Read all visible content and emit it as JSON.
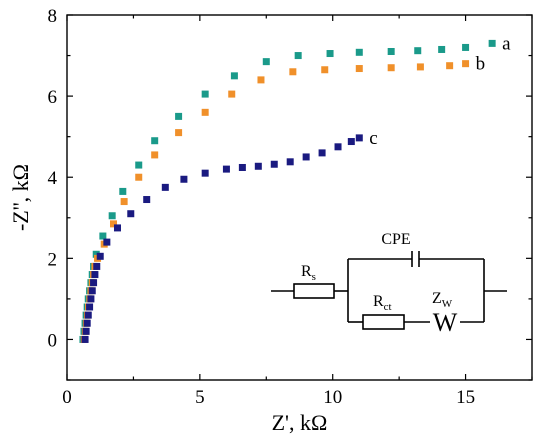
{
  "chart_data": {
    "type": "scatter",
    "xlabel": "Z', kΩ",
    "ylabel": "-Z'', kΩ",
    "xlim": [
      0,
      17.5
    ],
    "ylim": [
      -1,
      8
    ],
    "x_ticks": [
      0,
      5,
      10,
      15
    ],
    "y_ticks": [
      0,
      2,
      4,
      6,
      8
    ],
    "grid": false,
    "series": [
      {
        "name": "a",
        "color": "#1a9a8a",
        "points": [
          [
            0.6,
            0.0
          ],
          [
            0.64,
            0.2
          ],
          [
            0.68,
            0.4
          ],
          [
            0.72,
            0.6
          ],
          [
            0.76,
            0.8
          ],
          [
            0.8,
            1.0
          ],
          [
            0.85,
            1.2
          ],
          [
            0.9,
            1.4
          ],
          [
            0.95,
            1.6
          ],
          [
            1.0,
            1.8
          ],
          [
            1.1,
            2.1
          ],
          [
            1.35,
            2.55
          ],
          [
            1.7,
            3.05
          ],
          [
            2.1,
            3.65
          ],
          [
            2.7,
            4.3
          ],
          [
            3.3,
            4.9
          ],
          [
            4.2,
            5.5
          ],
          [
            5.2,
            6.05
          ],
          [
            6.3,
            6.5
          ],
          [
            7.5,
            6.85
          ],
          [
            8.7,
            7.0
          ],
          [
            9.9,
            7.05
          ],
          [
            11.0,
            7.08
          ],
          [
            12.2,
            7.1
          ],
          [
            13.2,
            7.12
          ],
          [
            14.1,
            7.15
          ],
          [
            15.0,
            7.2
          ],
          [
            16.0,
            7.3
          ]
        ]
      },
      {
        "name": "b",
        "color": "#f0902a",
        "points": [
          [
            0.65,
            0.0
          ],
          [
            0.69,
            0.2
          ],
          [
            0.73,
            0.4
          ],
          [
            0.77,
            0.6
          ],
          [
            0.81,
            0.8
          ],
          [
            0.86,
            1.0
          ],
          [
            0.9,
            1.2
          ],
          [
            0.95,
            1.4
          ],
          [
            1.0,
            1.6
          ],
          [
            1.05,
            1.8
          ],
          [
            1.15,
            2.0
          ],
          [
            1.4,
            2.35
          ],
          [
            1.75,
            2.85
          ],
          [
            2.15,
            3.4
          ],
          [
            2.7,
            4.0
          ],
          [
            3.3,
            4.55
          ],
          [
            4.2,
            5.1
          ],
          [
            5.2,
            5.6
          ],
          [
            6.2,
            6.05
          ],
          [
            7.3,
            6.4
          ],
          [
            8.5,
            6.6
          ],
          [
            9.7,
            6.65
          ],
          [
            11.0,
            6.68
          ],
          [
            12.2,
            6.7
          ],
          [
            13.3,
            6.72
          ],
          [
            14.4,
            6.75
          ],
          [
            15.0,
            6.8
          ]
        ]
      },
      {
        "name": "c",
        "color": "#1a1a80",
        "points": [
          [
            0.68,
            0.0
          ],
          [
            0.72,
            0.2
          ],
          [
            0.76,
            0.4
          ],
          [
            0.8,
            0.6
          ],
          [
            0.85,
            0.8
          ],
          [
            0.9,
            1.0
          ],
          [
            0.95,
            1.2
          ],
          [
            1.0,
            1.4
          ],
          [
            1.05,
            1.6
          ],
          [
            1.12,
            1.8
          ],
          [
            1.25,
            2.05
          ],
          [
            1.5,
            2.4
          ],
          [
            1.9,
            2.75
          ],
          [
            2.4,
            3.1
          ],
          [
            3.0,
            3.45
          ],
          [
            3.7,
            3.75
          ],
          [
            4.4,
            3.95
          ],
          [
            5.2,
            4.1
          ],
          [
            6.0,
            4.2
          ],
          [
            6.6,
            4.24
          ],
          [
            7.2,
            4.27
          ],
          [
            7.8,
            4.32
          ],
          [
            8.4,
            4.38
          ],
          [
            9.0,
            4.5
          ],
          [
            9.6,
            4.6
          ],
          [
            10.2,
            4.75
          ],
          [
            10.7,
            4.88
          ],
          [
            11.0,
            4.97
          ]
        ]
      }
    ],
    "circuit_labels": {
      "rs": "R",
      "rs_sub": "s",
      "cpe": "CPE",
      "rct": "R",
      "rct_sub": "ct",
      "zw": "Z",
      "zw_sub": "W",
      "warburg_symbol": "W"
    }
  }
}
